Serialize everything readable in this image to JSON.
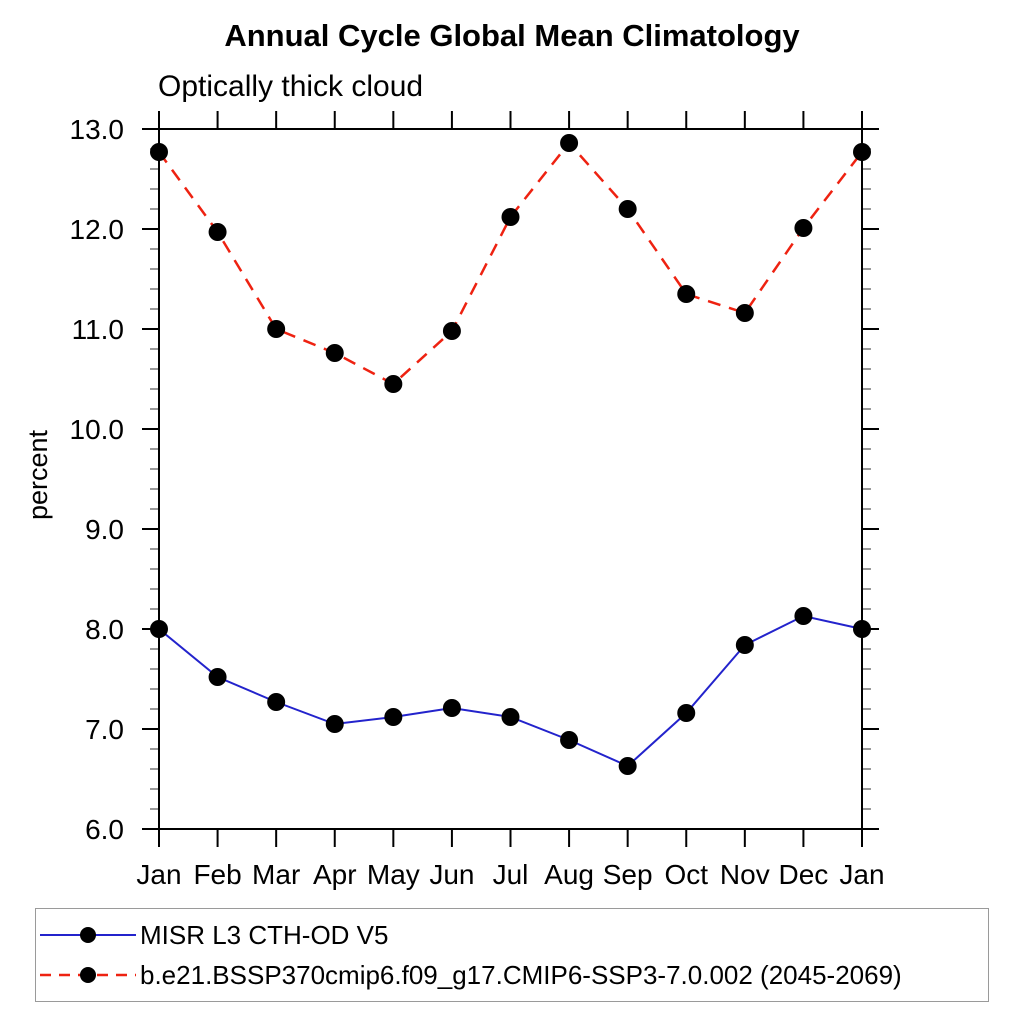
{
  "header": {
    "title": "Annual Cycle Global Mean Climatology",
    "subtitle": "Optically thick cloud"
  },
  "chart_data": {
    "type": "line",
    "title": "Annual Cycle Global Mean Climatology",
    "subtitle": "Optically thick cloud",
    "xlabel": "",
    "ylabel": "percent",
    "ylim": [
      6.0,
      13.0
    ],
    "ytick_step": 1.0,
    "ytick_minor_step": 0.2,
    "ytick_labels": [
      "6.0",
      "7.0",
      "8.0",
      "9.0",
      "10.0",
      "11.0",
      "12.0",
      "13.0"
    ],
    "categories": [
      "Jan",
      "Feb",
      "Mar",
      "Apr",
      "May",
      "Jun",
      "Jul",
      "Aug",
      "Sep",
      "Oct",
      "Nov",
      "Dec",
      "Jan"
    ],
    "grid": false,
    "legend_position": "bottom-left",
    "series": [
      {
        "name": "MISR L3 CTH-OD V5",
        "color": "#2323cc",
        "line_style": "solid",
        "line_width": 2,
        "marker": "circle",
        "marker_color": "#000000",
        "values": [
          8.0,
          7.52,
          7.27,
          7.05,
          7.12,
          7.21,
          7.12,
          6.89,
          6.63,
          7.16,
          7.84,
          8.13,
          8.0
        ]
      },
      {
        "name": "b.e21.BSSP370cmip6.f09_g17.CMIP6-SSP3-7.0.002 (2045-2069)",
        "color": "#ee2211",
        "line_style": "dashed",
        "line_width": 2.5,
        "marker": "circle",
        "marker_color": "#000000",
        "values": [
          12.77,
          11.97,
          11.0,
          10.76,
          10.45,
          10.98,
          12.12,
          12.86,
          12.2,
          11.35,
          11.16,
          12.01,
          12.77
        ]
      }
    ]
  }
}
